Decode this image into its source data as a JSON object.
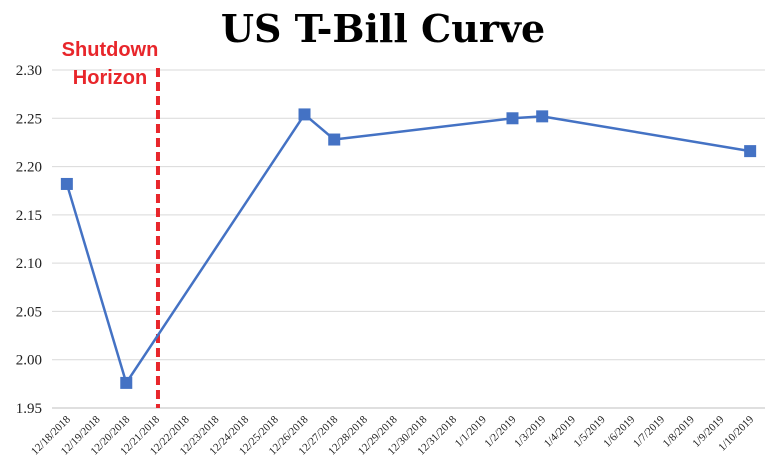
{
  "chart_data": {
    "type": "line",
    "title": "US T-Bill Curve",
    "xlabel": "",
    "ylabel": "",
    "ylim": [
      1.95,
      2.3
    ],
    "yticks": [
      "1.95",
      "2.00",
      "2.05",
      "2.10",
      "2.15",
      "2.20",
      "2.25",
      "2.30"
    ],
    "categories": [
      "12/18/2018",
      "12/19/2018",
      "12/20/2018",
      "12/21/2018",
      "12/22/2018",
      "12/23/2018",
      "12/24/2018",
      "12/25/2018",
      "12/26/2018",
      "12/27/2018",
      "12/28/2018",
      "12/29/2018",
      "12/30/2018",
      "12/31/2018",
      "1/1/2019",
      "1/2/2019",
      "1/3/2019",
      "1/4/2019",
      "1/5/2019",
      "1/6/2019",
      "1/7/2019",
      "1/8/2019",
      "1/9/2019",
      "1/10/2019"
    ],
    "series": [
      {
        "x": [
          "12/18/2018",
          "12/20/2018",
          "12/26/2018",
          "12/27/2018",
          "1/2/2019",
          "1/3/2019",
          "1/10/2019"
        ],
        "values": [
          2.182,
          1.976,
          2.254,
          2.228,
          2.25,
          2.252,
          2.216
        ]
      }
    ],
    "grid": true,
    "legend": "none",
    "line_color": "#4472C4",
    "marker_color": "#4472C4",
    "annotation": {
      "text_line1": "Shutdown",
      "text_line2": "Horizon",
      "at_category": "12/21/2018",
      "color": "#E8262B",
      "style": "dashed"
    }
  }
}
